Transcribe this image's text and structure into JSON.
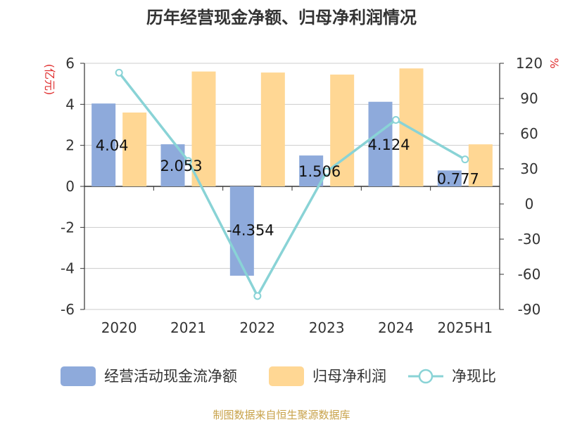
{
  "chart_data": {
    "type": "bar",
    "title": "历年经营现金净额、归母净利润情况",
    "categories": [
      "2020",
      "2021",
      "2022",
      "2023",
      "2024",
      "2025H1"
    ],
    "series": [
      {
        "name": "经营活动现金流净额",
        "type": "bar",
        "axis": "left",
        "color": "#8eaadb",
        "values": [
          4.04,
          2.053,
          -4.354,
          1.506,
          4.124,
          0.777
        ]
      },
      {
        "name": "归母净利润",
        "type": "bar",
        "axis": "left",
        "color": "#ffd794",
        "values": [
          3.6,
          5.6,
          5.55,
          5.45,
          5.75,
          2.05
        ]
      },
      {
        "name": "净现比",
        "type": "line",
        "axis": "right",
        "color": "#89d3d6",
        "values": [
          112,
          36.7,
          -78.5,
          27.6,
          71.7,
          38
        ]
      }
    ],
    "data_labels": [
      "4.04",
      "2.053",
      "-4.354",
      "1.506",
      "4.124",
      "0.777"
    ],
    "y_left": {
      "unit": "(亿元)",
      "range": [
        -6,
        6
      ],
      "ticks": [
        "6",
        "4",
        "2",
        "0",
        "-2",
        "-4",
        "-6"
      ]
    },
    "y_right": {
      "unit": "%",
      "range": [
        -90,
        120
      ],
      "ticks": [
        "120",
        "90",
        "60",
        "30",
        "0",
        "-30",
        "-60",
        "-90"
      ]
    },
    "grid": true,
    "legend_position": "bottom"
  },
  "source": "制图数据来自恒生聚源数据库"
}
